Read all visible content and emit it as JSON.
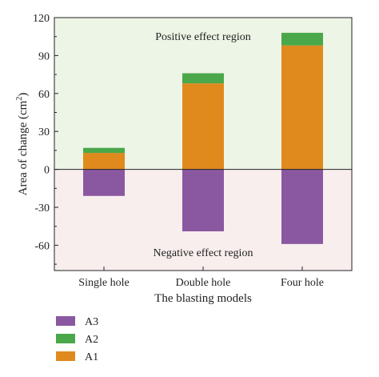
{
  "chart_data": {
    "type": "bar",
    "stacked": true,
    "categories": [
      "Single hole",
      "Double hole",
      "Four hole"
    ],
    "series": [
      {
        "name": "A1",
        "values": [
          13,
          68,
          98
        ],
        "color": "#e08a1e"
      },
      {
        "name": "A2",
        "values": [
          4,
          8,
          10
        ],
        "color": "#4aa84a"
      },
      {
        "name": "A3",
        "values": [
          -21,
          -49,
          -59
        ],
        "color": "#8a58a0"
      }
    ],
    "xlabel": "The blasting models",
    "ylabel_main": "Area of change (cm",
    "ylabel_sup": "2",
    "ylabel_end": ")",
    "ylim": [
      -80,
      120
    ],
    "yticks": [
      -60,
      -30,
      0,
      30,
      60,
      90,
      120
    ],
    "ytick_labels": [
      "-60",
      "-30",
      "0",
      "30",
      "60",
      "90",
      "120"
    ],
    "region_labels": {
      "positive": "Positive effect region",
      "negative": "Negative effect region"
    },
    "region_colors": {
      "positive": "#edf5e6",
      "negative": "#f8eeee"
    },
    "legend_order": [
      "A3",
      "A2",
      "A1"
    ],
    "legend_position": "below-left",
    "grid": false
  }
}
